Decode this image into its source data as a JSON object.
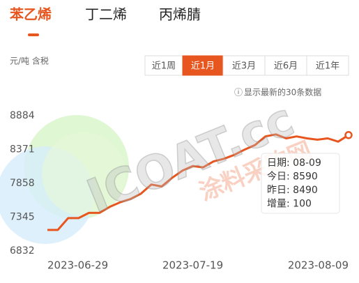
{
  "tabs": [
    "苯乙烯",
    "丁二烯",
    "丙烯腈"
  ],
  "unit": "元/吨 含税",
  "periods": [
    "近1周",
    "近1月",
    "近3月",
    "近6月",
    "近1年"
  ],
  "note": "显示最新的30条数据",
  "watermark": [
    "ICOAT.cc",
    "涂料采购网"
  ],
  "chart_data": {
    "type": "line",
    "color": "#e8561f",
    "categories": [
      "2023-06-29",
      null,
      null,
      null,
      null,
      null,
      null,
      null,
      null,
      null,
      null,
      null,
      null,
      null,
      "2023-07-19",
      null,
      null,
      null,
      null,
      null,
      null,
      null,
      null,
      null,
      null,
      null,
      null,
      null,
      null,
      "2023-08-09"
    ],
    "values": [
      7150,
      7150,
      7330,
      7330,
      7410,
      7410,
      7500,
      7570,
      7620,
      7700,
      7840,
      7810,
      7940,
      8050,
      8120,
      8100,
      8190,
      8230,
      8290,
      8370,
      8440,
      8570,
      8600,
      8540,
      8570,
      8540,
      8520,
      8540,
      8490,
      8590
    ],
    "ylim": [
      6832,
      8884
    ],
    "yticks": [
      6832,
      7345,
      7858,
      8371,
      8884
    ],
    "grid": false,
    "tooltip": [
      "日期: 08-09",
      "今日: 8590",
      "昨日: 8490",
      "增量: 100"
    ]
  }
}
